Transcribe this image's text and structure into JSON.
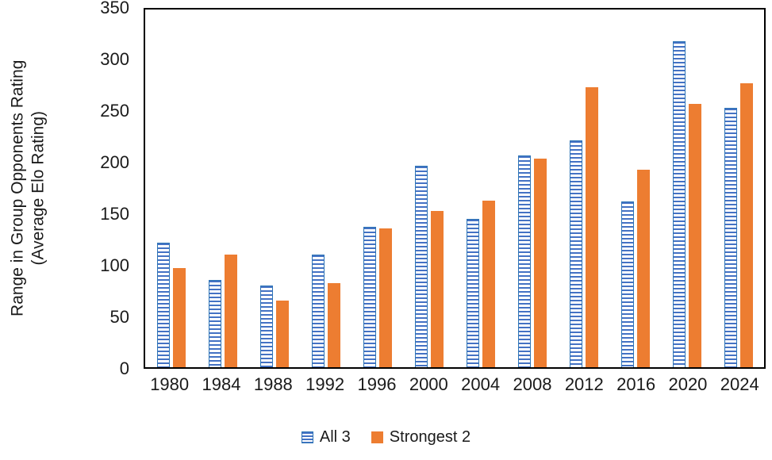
{
  "chart_data": {
    "type": "bar",
    "title": "",
    "ylabel_line1": "Range in Group Opponents Rating",
    "ylabel_line2": "(Average Elo Rating)",
    "xlabel": "",
    "categories": [
      "1980",
      "1984",
      "1988",
      "1992",
      "1996",
      "2000",
      "2004",
      "2008",
      "2012",
      "2016",
      "2020",
      "2024"
    ],
    "series": [
      {
        "name": "All 3",
        "color": "#4472C4",
        "pattern": "horizontal-stripes",
        "values": [
          122,
          85,
          80,
          110,
          137,
          197,
          145,
          207,
          222,
          162,
          319,
          254
        ]
      },
      {
        "name": "Strongest 2",
        "color": "#ED7D31",
        "pattern": "solid",
        "values": [
          97,
          110,
          65,
          82,
          136,
          153,
          163,
          204,
          274,
          193,
          258,
          278
        ]
      }
    ],
    "ylim": [
      0,
      350
    ],
    "ytick_step": 50,
    "grid": false,
    "legend_position": "bottom",
    "axis_color": "#000000",
    "text_color": "#1a1a1a"
  }
}
